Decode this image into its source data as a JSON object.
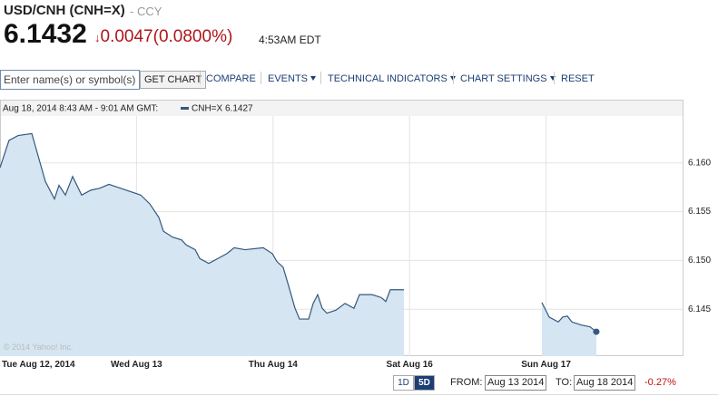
{
  "header": {
    "symbol": "USD/CNH (CNH=X)",
    "exchange": "- CCY",
    "price": "6.1432",
    "change": "0.0047",
    "change_pct": "(0.0800%)",
    "time": "4:53AM EDT"
  },
  "toolbar": {
    "search_placeholder": "Enter name(s) or symbol(s)",
    "button": "GET CHART",
    "links": [
      "COMPARE",
      "EVENTS",
      "TECHNICAL INDICATORS",
      "CHART SETTINGS",
      "RESET"
    ]
  },
  "chart_data": {
    "type": "line",
    "info_label": "Aug 18, 2014 8:43 AM - 9:01 AM GMT:",
    "watermark": "© 2014 Yahoo! Inc.",
    "x": [
      0,
      0.066,
      0.133,
      0.233,
      0.332,
      0.399,
      0.432,
      0.479,
      0.532,
      0.598,
      0.665,
      0.731,
      0.798,
      1.031,
      1.097,
      1.164,
      1.197,
      1.263,
      1.33,
      1.363,
      1.43,
      1.463,
      1.529,
      1.596,
      1.662,
      1.715,
      1.795,
      1.928,
      1.995,
      2.028,
      2.074,
      2.114,
      2.161,
      2.194,
      2.261,
      2.294,
      2.327,
      2.36,
      2.394,
      2.46,
      2.527,
      2.593,
      2.633,
      2.726,
      2.793,
      2.826,
      2.859,
      2.959,
      3.5,
      3.969,
      4.023,
      4.089,
      4.122,
      4.156,
      4.189,
      4.255,
      4.322,
      4.368
    ],
    "series": [
      {
        "name": "CNH=X",
        "last_value": 6.1427,
        "color": "#34587f",
        "fill": "#d5e5f1",
        "values": [
          6.1595,
          6.1623,
          6.1628,
          6.163,
          6.1581,
          6.1563,
          6.1577,
          6.1567,
          6.1586,
          6.1567,
          6.1572,
          6.1574,
          6.1578,
          6.1567,
          6.1558,
          6.1544,
          6.153,
          6.1524,
          6.1521,
          6.1516,
          6.1511,
          6.1502,
          6.1497,
          6.1502,
          6.1507,
          6.1513,
          6.1511,
          6.1513,
          6.1507,
          6.1499,
          6.1493,
          6.1474,
          6.1451,
          6.144,
          6.144,
          6.1456,
          6.1465,
          6.1451,
          6.1446,
          6.1449,
          6.1456,
          6.1451,
          6.1465,
          6.1465,
          6.1462,
          6.1458,
          6.147,
          6.147,
          null,
          6.1457,
          6.1442,
          6.1437,
          6.1442,
          6.1443,
          6.1437,
          6.1434,
          6.1432,
          6.1427
        ]
      }
    ],
    "xlim": [
      0,
      5
    ],
    "xticks": [
      {
        "value": 0,
        "label": "Tue Aug 12, 2014"
      },
      {
        "value": 1,
        "label": "Wed Aug 13"
      },
      {
        "value": 2,
        "label": "Thu Aug 14"
      },
      {
        "value": 3,
        "label": "Sat Aug 16"
      },
      {
        "value": 4,
        "label": "Sun Aug 17"
      }
    ],
    "ylim": [
      6.1402,
      6.1648
    ],
    "yticks": [
      6.145,
      {
        "value": 6.15,
        "label": "6.150"
      },
      6.155,
      {
        "value": 6.16,
        "label": "6.160"
      }
    ],
    "grid": true
  },
  "footer": {
    "ranges": [
      "1D",
      "5D"
    ],
    "from_label": "FROM:",
    "from_value": "Aug 13 2014",
    "to_label": "TO:",
    "to_value": "Aug 18 2014",
    "change": "-0.27%"
  }
}
